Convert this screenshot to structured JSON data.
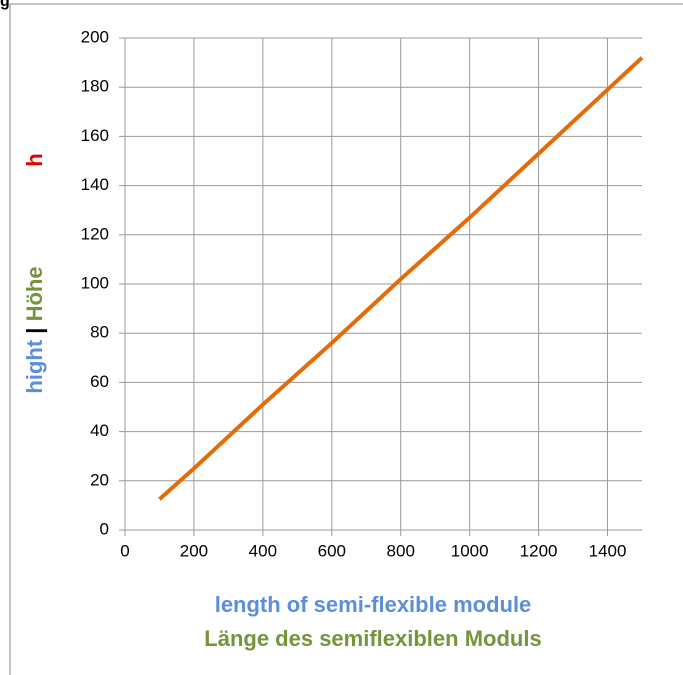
{
  "corner_label": "g",
  "chart_data": {
    "type": "line",
    "x": [
      100,
      200,
      400,
      600,
      800,
      1000,
      1200,
      1400,
      1500
    ],
    "series": [
      {
        "name": "h",
        "color": "#e36c09",
        "values": [
          12.5,
          25,
          51,
          76,
          102,
          127,
          153,
          179,
          192
        ]
      }
    ],
    "xlim": [
      0,
      1500
    ],
    "ylim": [
      0,
      200
    ],
    "xticks": [
      0,
      200,
      400,
      600,
      800,
      1000,
      1200,
      1400
    ],
    "yticks": [
      0,
      20,
      40,
      60,
      80,
      100,
      120,
      140,
      160,
      180,
      200
    ],
    "grid": true,
    "y_label": {
      "en": "hight",
      "sep": "|",
      "de": "Höhe",
      "symbol": "h"
    },
    "x_label": {
      "en": "length of semi-flexible module",
      "de": "Länge des semiflexiblen Moduls"
    }
  }
}
